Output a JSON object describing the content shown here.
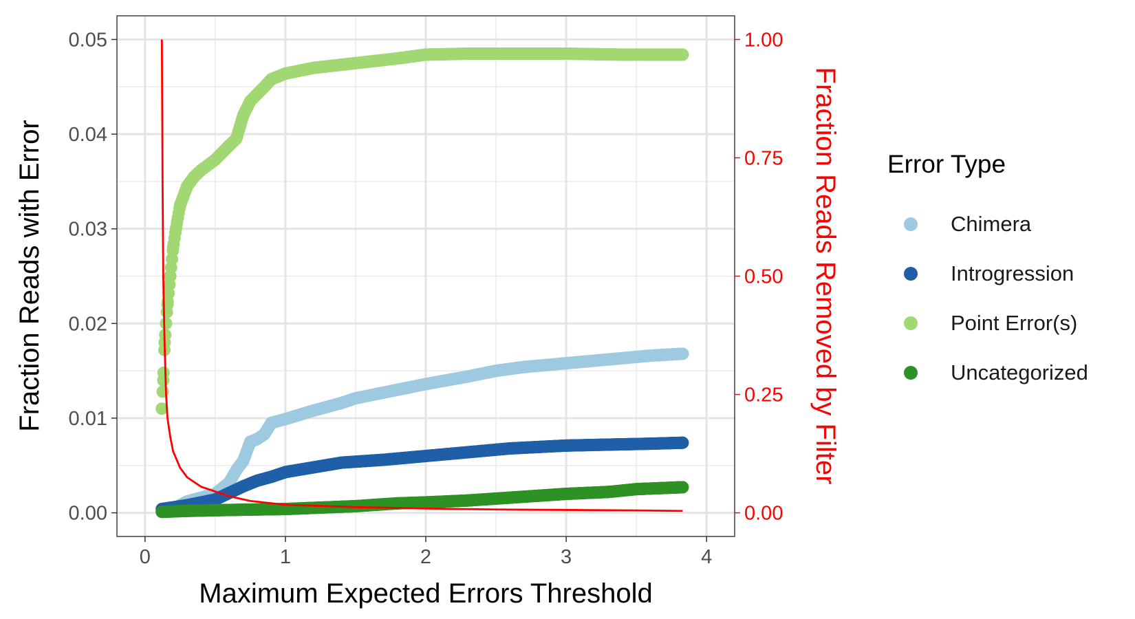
{
  "chart_data": {
    "type": "scatter",
    "xlabel": "Maximum Expected Errors Threshold",
    "ylabel": "Fraction Reads with Error",
    "y2label": "Fraction Reads Removed by Filter",
    "xlim": [
      -0.2,
      4.2
    ],
    "ylim": [
      -0.0025,
      0.0525
    ],
    "y2lim": [
      -0.05,
      1.05
    ],
    "xticks": [
      "0",
      "1",
      "2",
      "3",
      "4"
    ],
    "yticks": [
      "0.00",
      "0.01",
      "0.02",
      "0.03",
      "0.04",
      "0.05"
    ],
    "y2ticks": [
      "0.00",
      "0.25",
      "0.50",
      "0.75",
      "1.00"
    ],
    "grid": true,
    "legend_title": "Error Type",
    "legend_position": "right",
    "series": [
      {
        "name": "Chimera",
        "color": "#9ecae1",
        "points": [
          [
            0.12,
            0.0002
          ],
          [
            0.2,
            0.0004
          ],
          [
            0.3,
            0.0012
          ],
          [
            0.4,
            0.0016
          ],
          [
            0.5,
            0.002
          ],
          [
            0.6,
            0.0032
          ],
          [
            0.65,
            0.0045
          ],
          [
            0.7,
            0.0055
          ],
          [
            0.75,
            0.0075
          ],
          [
            0.8,
            0.0078
          ],
          [
            0.85,
            0.0083
          ],
          [
            0.9,
            0.0095
          ],
          [
            1.0,
            0.0099
          ],
          [
            1.2,
            0.0108
          ],
          [
            1.4,
            0.0116
          ],
          [
            1.5,
            0.0121
          ],
          [
            1.7,
            0.0127
          ],
          [
            2.0,
            0.0136
          ],
          [
            2.3,
            0.0144
          ],
          [
            2.5,
            0.015
          ],
          [
            2.7,
            0.0154
          ],
          [
            3.0,
            0.0158
          ],
          [
            3.3,
            0.0162
          ],
          [
            3.6,
            0.0166
          ],
          [
            3.83,
            0.0168
          ]
        ]
      },
      {
        "name": "Introgression",
        "color": "#1f5fa8",
        "points": [
          [
            0.12,
            0.0004
          ],
          [
            0.3,
            0.0008
          ],
          [
            0.5,
            0.0014
          ],
          [
            0.7,
            0.0028
          ],
          [
            0.8,
            0.0034
          ],
          [
            0.9,
            0.0038
          ],
          [
            1.0,
            0.0043
          ],
          [
            1.2,
            0.0048
          ],
          [
            1.4,
            0.0053
          ],
          [
            1.7,
            0.0056
          ],
          [
            2.0,
            0.006
          ],
          [
            2.3,
            0.0064
          ],
          [
            2.6,
            0.0068
          ],
          [
            3.0,
            0.0071
          ],
          [
            3.3,
            0.0072
          ],
          [
            3.6,
            0.0073
          ],
          [
            3.83,
            0.0074
          ]
        ]
      },
      {
        "name": "Point Error(s)",
        "color": "#a1d873",
        "points": [
          [
            0.12,
            0.011
          ],
          [
            0.13,
            0.014
          ],
          [
            0.14,
            0.018
          ],
          [
            0.16,
            0.022
          ],
          [
            0.18,
            0.025
          ],
          [
            0.2,
            0.028
          ],
          [
            0.22,
            0.03
          ],
          [
            0.25,
            0.0325
          ],
          [
            0.3,
            0.0345
          ],
          [
            0.35,
            0.0355
          ],
          [
            0.4,
            0.0362
          ],
          [
            0.5,
            0.0373
          ],
          [
            0.6,
            0.0388
          ],
          [
            0.65,
            0.0395
          ],
          [
            0.7,
            0.042
          ],
          [
            0.75,
            0.0435
          ],
          [
            0.85,
            0.045
          ],
          [
            0.9,
            0.0458
          ],
          [
            1.0,
            0.0464
          ],
          [
            1.2,
            0.047
          ],
          [
            1.5,
            0.0475
          ],
          [
            1.8,
            0.048
          ],
          [
            2.0,
            0.0484
          ],
          [
            2.3,
            0.0485
          ],
          [
            2.6,
            0.0485
          ],
          [
            3.0,
            0.0485
          ],
          [
            3.4,
            0.0484
          ],
          [
            3.83,
            0.0484
          ]
        ]
      },
      {
        "name": "Uncategorized",
        "color": "#2e9124",
        "points": [
          [
            0.12,
            0.0001
          ],
          [
            0.3,
            0.0002
          ],
          [
            0.6,
            0.0003
          ],
          [
            1.0,
            0.0004
          ],
          [
            1.5,
            0.0007
          ],
          [
            1.8,
            0.001
          ],
          [
            2.0,
            0.0011
          ],
          [
            2.3,
            0.0013
          ],
          [
            2.6,
            0.0016
          ],
          [
            2.8,
            0.0018
          ],
          [
            3.0,
            0.002
          ],
          [
            3.3,
            0.0022
          ],
          [
            3.5,
            0.0025
          ],
          [
            3.83,
            0.0027
          ]
        ]
      }
    ],
    "line_series": {
      "axis": "y2",
      "color": "#ff0000",
      "points": [
        [
          0.12,
          1.0
        ],
        [
          0.125,
          0.7
        ],
        [
          0.13,
          0.5
        ],
        [
          0.14,
          0.35
        ],
        [
          0.15,
          0.25
        ],
        [
          0.16,
          0.2
        ],
        [
          0.18,
          0.16
        ],
        [
          0.2,
          0.13
        ],
        [
          0.25,
          0.095
        ],
        [
          0.3,
          0.075
        ],
        [
          0.4,
          0.055
        ],
        [
          0.5,
          0.045
        ],
        [
          0.6,
          0.035
        ],
        [
          0.75,
          0.025
        ],
        [
          1.0,
          0.017
        ],
        [
          1.5,
          0.012
        ],
        [
          2.0,
          0.009
        ],
        [
          2.5,
          0.007
        ],
        [
          3.0,
          0.006
        ],
        [
          3.5,
          0.005
        ],
        [
          3.83,
          0.004
        ]
      ]
    }
  }
}
